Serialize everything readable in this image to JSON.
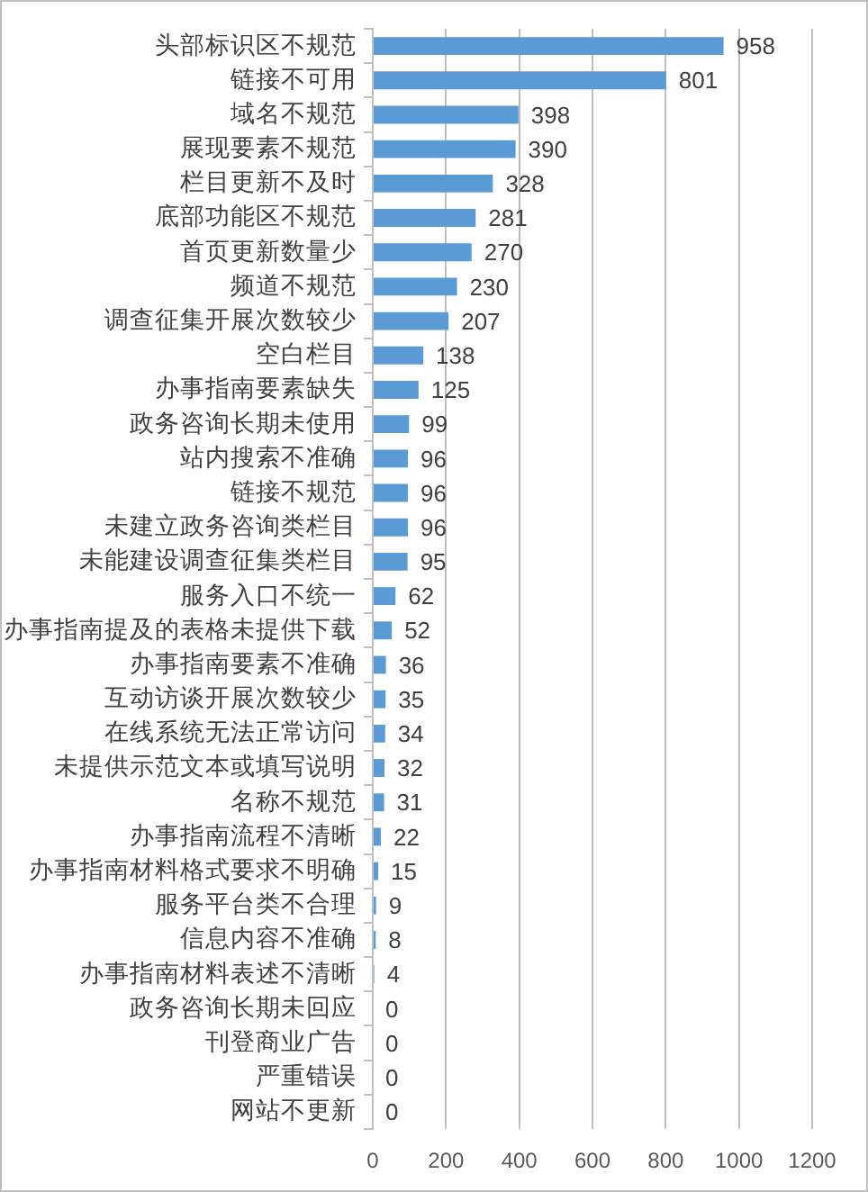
{
  "chart_data": {
    "type": "bar",
    "orientation": "horizontal",
    "categories": [
      "头部标识区不规范",
      "链接不可用",
      "域名不规范",
      "展现要素不规范",
      "栏目更新不及时",
      "底部功能区不规范",
      "首页更新数量少",
      "频道不规范",
      "调查征集开展次数较少",
      "空白栏目",
      "办事指南要素缺失",
      "政务咨询长期未使用",
      "站内搜索不准确",
      "链接不规范",
      "未建立政务咨询类栏目",
      "未能建设调查征集类栏目",
      "服务入口不统一",
      "办事指南提及的表格未提供下载",
      "办事指南要素不准确",
      "互动访谈开展次数较少",
      "在线系统无法正常访问",
      "未提供示范文本或填写说明",
      "名称不规范",
      "办事指南流程不清晰",
      "办事指南材料格式要求不明确",
      "服务平台类不合理",
      "信息内容不准确",
      "办事指南材料表述不清晰",
      "政务咨询长期未回应",
      "刊登商业广告",
      "严重错误",
      "网站不更新"
    ],
    "values": [
      958,
      801,
      398,
      390,
      328,
      281,
      270,
      230,
      207,
      138,
      125,
      99,
      96,
      96,
      96,
      95,
      62,
      52,
      36,
      35,
      34,
      32,
      31,
      22,
      15,
      9,
      8,
      4,
      0,
      0,
      0,
      0
    ],
    "color": "#5b9bd5",
    "xlim": [
      0,
      1200
    ],
    "xticks": [
      0,
      200,
      400,
      600,
      800,
      1000,
      1200
    ],
    "grid": "x",
    "data_labels": true,
    "legend": false
  }
}
